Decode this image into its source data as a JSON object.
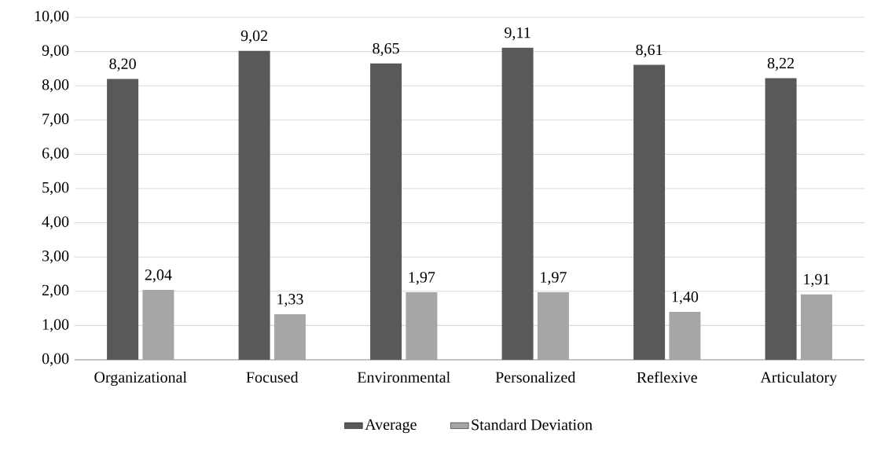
{
  "chart_data": {
    "type": "bar",
    "categories": [
      "Organizational",
      "Focused",
      "Environmental",
      "Personalized",
      "Reflexive",
      "Articulatory"
    ],
    "series": [
      {
        "name": "Average",
        "color": "#595959",
        "values": [
          8.2,
          9.02,
          8.65,
          9.11,
          8.61,
          8.22
        ],
        "value_labels": [
          "8,20",
          "9,02",
          "8,65",
          "9,11",
          "8,61",
          "8,22"
        ]
      },
      {
        "name": "Standard Deviation",
        "color": "#a6a6a6",
        "values": [
          2.04,
          1.33,
          1.97,
          1.97,
          1.4,
          1.91
        ],
        "value_labels": [
          "2,04",
          "1,33",
          "1,97",
          "1,97",
          "1,40",
          "1,91"
        ]
      }
    ],
    "ylim": [
      0,
      10
    ],
    "yticks": [
      {
        "value": 0,
        "label": "0,00"
      },
      {
        "value": 1,
        "label": "1,00"
      },
      {
        "value": 2,
        "label": "2,00"
      },
      {
        "value": 3,
        "label": "3,00"
      },
      {
        "value": 4,
        "label": "4,00"
      },
      {
        "value": 5,
        "label": "5,00"
      },
      {
        "value": 6,
        "label": "6,00"
      },
      {
        "value": 7,
        "label": "7,00"
      },
      {
        "value": 8,
        "label": "8,00"
      },
      {
        "value": 9,
        "label": "9,00"
      },
      {
        "value": 10,
        "label": "10,00"
      }
    ],
    "grid": "y",
    "legend": "bottom"
  }
}
